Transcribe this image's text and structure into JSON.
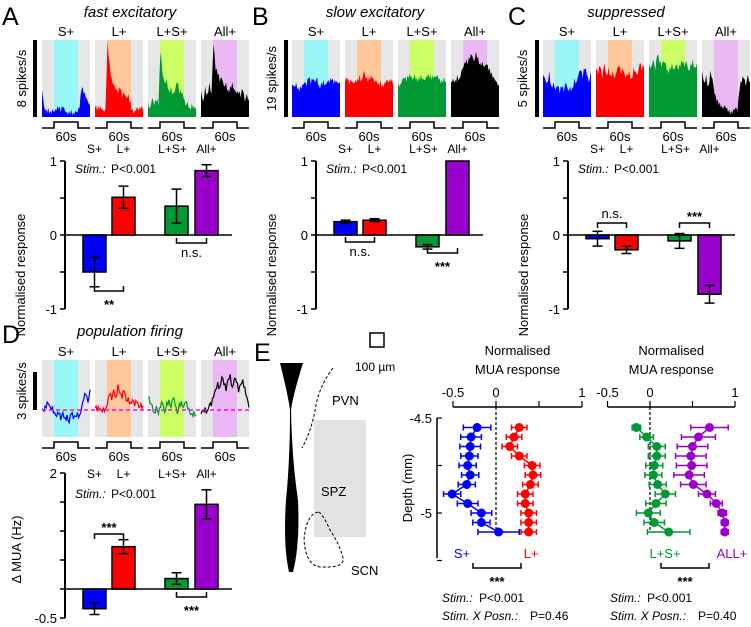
{
  "colors": {
    "S+": "#0000ff",
    "L+": "#ff0000",
    "L+S+": "#009933",
    "All+": "#000000",
    "All+bar": "#9900cc",
    "shade_S+": "#99f7f7",
    "shade_L+": "#ffc89c",
    "shade_L+S+": "#ccff66",
    "shade_All+": "#ebb8f5",
    "background": "#e6e6e6",
    "baseline": "#ff00ff"
  },
  "chart_data": [
    {
      "panel": "A",
      "type": "area",
      "title": "fast excitatory",
      "scale_label": "8 spikes/s",
      "duration_label": "60s",
      "traces": [
        {
          "name": "S+",
          "values": [
            0.35,
            0.14,
            0.1,
            0.12,
            0.08,
            0.1,
            0.07,
            0.09,
            0.1,
            0.06,
            0.12,
            0.08,
            0.06,
            0.08,
            0.1,
            0.06,
            0.08,
            0.06,
            0.12,
            0.36,
            0.3,
            0.25,
            0.2,
            0.16
          ]
        },
        {
          "name": "L+",
          "values": [
            0.12,
            0.08,
            0.1,
            0.1,
            0.08,
            0.1,
            1.0,
            0.7,
            0.5,
            0.42,
            0.35,
            0.3,
            0.36,
            0.25,
            0.3,
            0.25,
            0.3,
            0.2,
            0.1,
            0.08,
            0.12,
            0.08,
            0.1,
            0.08
          ]
        },
        {
          "name": "L+S+",
          "values": [
            0.2,
            0.12,
            0.25,
            0.15,
            0.2,
            0.15,
            0.85,
            0.55,
            0.45,
            0.5,
            0.35,
            0.4,
            0.3,
            0.35,
            0.45,
            0.3,
            0.3,
            0.25,
            0.15,
            0.2,
            0.12,
            0.18,
            0.15,
            0.12
          ]
        },
        {
          "name": "All+",
          "values": [
            0.35,
            0.2,
            0.4,
            0.3,
            0.45,
            0.3,
            0.95,
            0.6,
            0.55,
            0.45,
            0.5,
            0.4,
            0.45,
            0.35,
            0.4,
            0.45,
            0.35,
            0.3,
            0.3,
            0.25,
            0.35,
            0.2,
            0.3,
            0.22
          ]
        }
      ]
    },
    {
      "panel": "A",
      "type": "bar",
      "ylabel": "Normalised response",
      "ylim": [
        -1,
        1
      ],
      "yticks": [
        1,
        0.5,
        0,
        -0.5,
        -1
      ],
      "ytick_labels": [
        "1",
        "",
        "0",
        "",
        "-1"
      ],
      "categories": [
        "S+",
        "L+",
        "L+S+",
        "All+"
      ],
      "values": [
        -0.5,
        0.51,
        0.39,
        0.87
      ],
      "errors": [
        0.2,
        0.15,
        0.23,
        0.08
      ],
      "stat_label": "Stim.:",
      "stat_value": "P<0.001",
      "significance": [
        {
          "pair": [
            0,
            1
          ],
          "label": "**",
          "side": "below"
        },
        {
          "pair": [
            2,
            3
          ],
          "label": "n.s.",
          "side": "below"
        }
      ]
    },
    {
      "panel": "B",
      "type": "area",
      "title": "slow excitatory",
      "scale_label": "19 spikes/s",
      "duration_label": "60s",
      "traces": [
        {
          "name": "S+",
          "values": [
            0.42,
            0.4,
            0.45,
            0.38,
            0.4,
            0.42,
            0.45,
            0.4,
            0.5,
            0.42,
            0.48,
            0.45,
            0.52,
            0.4,
            0.45,
            0.48,
            0.42,
            0.46,
            0.44,
            0.47,
            0.42,
            0.45,
            0.44,
            0.46
          ]
        },
        {
          "name": "L+",
          "values": [
            0.45,
            0.48,
            0.42,
            0.46,
            0.44,
            0.48,
            0.5,
            0.55,
            0.48,
            0.6,
            0.5,
            0.45,
            0.48,
            0.5,
            0.45,
            0.47,
            0.44,
            0.48,
            0.42,
            0.45,
            0.48,
            0.44,
            0.46,
            0.42
          ]
        },
        {
          "name": "L+S+",
          "values": [
            0.45,
            0.42,
            0.48,
            0.5,
            0.46,
            0.5,
            0.52,
            0.48,
            0.55,
            0.5,
            0.52,
            0.55,
            0.5,
            0.48,
            0.52,
            0.5,
            0.48,
            0.5,
            0.52,
            0.55,
            0.5,
            0.48,
            0.52,
            0.46
          ]
        },
        {
          "name": "All+",
          "values": [
            0.45,
            0.5,
            0.48,
            0.55,
            0.5,
            0.6,
            0.65,
            0.7,
            0.68,
            0.75,
            0.8,
            0.72,
            0.85,
            0.78,
            0.7,
            0.72,
            0.65,
            0.68,
            0.6,
            0.55,
            0.5,
            0.48,
            0.45,
            0.42
          ]
        }
      ]
    },
    {
      "panel": "B",
      "type": "bar",
      "ylabel": "Normalised response",
      "ylim": [
        -1,
        1
      ],
      "yticks": [
        1,
        0.5,
        0,
        -0.5,
        -1
      ],
      "ytick_labels": [
        "1",
        "",
        "0",
        "",
        "-1"
      ],
      "categories": [
        "S+",
        "L+",
        "L+S+",
        "All+"
      ],
      "values": [
        0.18,
        0.2,
        -0.16,
        1.0
      ],
      "errors": [
        0.02,
        0.02,
        0.03,
        0
      ],
      "stat_label": "Stim.:",
      "stat_value": "P<0.001",
      "significance": [
        {
          "pair": [
            0,
            1
          ],
          "label": "n.s.",
          "side": "below"
        },
        {
          "pair": [
            2,
            3
          ],
          "label": "***",
          "side": "below"
        }
      ]
    },
    {
      "panel": "C",
      "type": "area",
      "title": "suppressed",
      "scale_label": "5 spikes/s",
      "duration_label": "60s",
      "traces": [
        {
          "name": "S+",
          "values": [
            0.55,
            0.5,
            0.45,
            0.6,
            0.4,
            0.45,
            0.35,
            0.4,
            0.3,
            0.38,
            0.32,
            0.45,
            0.35,
            0.4,
            0.38,
            0.5,
            0.45,
            0.55,
            0.6,
            0.5,
            0.62,
            0.55,
            0.45,
            0.6
          ]
        },
        {
          "name": "L+",
          "values": [
            0.6,
            0.55,
            0.65,
            0.5,
            0.7,
            0.55,
            0.65,
            0.55,
            0.6,
            0.5,
            0.6,
            0.65,
            0.55,
            0.6,
            0.5,
            0.55,
            0.6,
            0.5,
            0.65,
            0.6,
            0.55,
            0.7,
            0.6,
            0.65
          ]
        },
        {
          "name": "L+S+",
          "values": [
            0.7,
            0.65,
            0.75,
            0.6,
            0.8,
            0.7,
            0.65,
            0.72,
            0.7,
            0.6,
            0.65,
            0.7,
            0.62,
            0.68,
            0.6,
            0.65,
            0.7,
            0.65,
            0.72,
            0.6,
            0.7,
            0.75,
            0.65,
            0.7
          ]
        },
        {
          "name": "All+",
          "values": [
            0.6,
            0.45,
            0.55,
            0.4,
            0.6,
            0.5,
            0.3,
            0.2,
            0.15,
            0.12,
            0.1,
            0.15,
            0.12,
            0.1,
            0.08,
            0.1,
            0.12,
            0.08,
            0.35,
            0.45,
            0.5,
            0.4,
            0.55,
            0.45
          ]
        }
      ]
    },
    {
      "panel": "C",
      "type": "bar",
      "ylabel": "Normalised response",
      "ylim": [
        -1,
        1
      ],
      "yticks": [
        1,
        0.5,
        0,
        -0.5,
        -1
      ],
      "ytick_labels": [
        "1",
        "",
        "0",
        "",
        "-1"
      ],
      "categories": [
        "S+",
        "L+",
        "L+S+",
        "All+"
      ],
      "values": [
        -0.05,
        -0.2,
        -0.08,
        -0.8
      ],
      "errors": [
        0.1,
        0.05,
        0.1,
        0.12
      ],
      "stat_label": "Stim.:",
      "stat_value": "P<0.001",
      "significance": [
        {
          "pair": [
            0,
            1
          ],
          "label": "n.s.",
          "side": "above"
        },
        {
          "pair": [
            2,
            3
          ],
          "label": "***",
          "side": "above"
        }
      ]
    },
    {
      "panel": "D",
      "type": "line",
      "title": "population firing",
      "scale_label": "3 spikes/s",
      "duration_label": "60s",
      "units": "delta spikes/s from baseline",
      "traces": [
        {
          "name": "S+",
          "values": [
            0.1,
            -0.1,
            0.2,
            0.5,
            0.2,
            0.3,
            -0.2,
            -0.5,
            -0.3,
            -0.8,
            -0.2,
            -0.6,
            -0.4,
            -1.0,
            -0.3,
            -0.7,
            -0.5,
            -0.2,
            -0.4,
            0.2,
            0.8,
            1.2,
            0.6,
            1.6
          ]
        },
        {
          "name": "L+",
          "values": [
            0.2,
            -0.1,
            0.1,
            0,
            0.2,
            0.1,
            0.5,
            1.2,
            0.8,
            1.6,
            1.0,
            2.0,
            1.3,
            0.9,
            1.5,
            0.7,
            1.0,
            0.6,
            0.8,
            0.3,
            0.6,
            0.2,
            0.5,
            0.3
          ]
        },
        {
          "name": "L+S+",
          "values": [
            1.0,
            0.5,
            0.4,
            -0.2,
            0.3,
            -0.3,
            0.2,
            0.5,
            -0.2,
            0.6,
            0.8,
            0.2,
            0.9,
            0.4,
            -0.3,
            0.5,
            0.7,
            0.2,
            0.6,
            0.1,
            -0.2,
            -0.3,
            -0.1,
            -0.4
          ]
        },
        {
          "name": "All+",
          "values": [
            -0.3,
            0,
            0.2,
            -0.1,
            0.4,
            0.3,
            1.0,
            1.6,
            2.2,
            1.8,
            2.6,
            2.0,
            1.5,
            2.4,
            2.8,
            1.8,
            2.5,
            2.2,
            1.4,
            2.0,
            2.4,
            1.8,
            1.0,
            0.2
          ]
        }
      ]
    },
    {
      "panel": "D",
      "type": "bar",
      "ylabel": "Δ MUA (Hz)",
      "ylim": [
        -0.5,
        2
      ],
      "yticks": [
        2,
        1.5,
        1,
        0.5,
        0,
        -0.5
      ],
      "ytick_labels": [
        "2",
        "",
        "",
        "",
        "",
        "-0.5"
      ],
      "categories": [
        "S+",
        "L+",
        "L+S+",
        "All+"
      ],
      "values": [
        -0.34,
        0.73,
        0.18,
        1.46
      ],
      "errors": [
        0.1,
        0.12,
        0.1,
        0.25
      ],
      "stat_label": "Stim.:",
      "stat_value": "P<0.001",
      "significance": [
        {
          "pair": [
            0,
            1
          ],
          "label": "***",
          "side": "above"
        },
        {
          "pair": [
            2,
            3
          ],
          "label": "***",
          "side": "below"
        }
      ]
    },
    {
      "panel": "E",
      "type": "scatter",
      "title_line1": "Normalised",
      "title_line2": "MUA response",
      "ylabel": "Depth (mm)",
      "xlim": [
        -0.5,
        1
      ],
      "ylim": [
        -5.2,
        -4.5
      ],
      "xticks": [
        -0.5,
        0,
        0.5,
        1
      ],
      "xtick_labels": [
        "-0.5",
        "0",
        "",
        "1"
      ],
      "yticks": [
        -4.5,
        -4.75,
        -5,
        -5.25
      ],
      "ytick_labels": [
        "-4.5",
        "",
        "-5",
        ""
      ],
      "depths": [
        -4.55,
        -4.6,
        -4.65,
        -4.7,
        -4.75,
        -4.8,
        -4.85,
        -4.9,
        -4.95,
        -5.0,
        -5.05,
        -5.1
      ],
      "series": [
        {
          "name": "S+",
          "values": [
            -0.22,
            -0.29,
            -0.3,
            -0.31,
            -0.33,
            -0.3,
            -0.34,
            -0.51,
            -0.33,
            -0.17,
            -0.17,
            0.03
          ],
          "errors": [
            0.16,
            0.12,
            0.12,
            0.1,
            0.1,
            0.1,
            0.1,
            0.1,
            0.12,
            0.12,
            0.1,
            0.24
          ]
        },
        {
          "name": "L+",
          "values": [
            0.27,
            0.21,
            0.16,
            0.27,
            0.42,
            0.43,
            0.4,
            0.34,
            0.34,
            0.38,
            0.38,
            0.38
          ],
          "errors": [
            0.09,
            0.09,
            0.09,
            0.09,
            0.09,
            0.09,
            0.09,
            0.09,
            0.09,
            0.09,
            0.09,
            0.09
          ]
        }
      ],
      "stat_line1_label": "Stim.:",
      "stat_line1_value": "P<0.001",
      "stat_line2_label": "Stim. X Posn.:",
      "stat_line2_value": "P=0.46",
      "significance": "***"
    },
    {
      "panel": "E",
      "type": "scatter",
      "title_line1": "Normalised",
      "title_line2": "MUA response",
      "xlim": [
        -0.5,
        1
      ],
      "xticks": [
        -0.5,
        0,
        0.5,
        1
      ],
      "xtick_labels": [
        "-0.5",
        "0",
        "",
        "1"
      ],
      "depths": [
        -4.55,
        -4.6,
        -4.65,
        -4.7,
        -4.75,
        -4.8,
        -4.85,
        -4.9,
        -4.95,
        -5.0,
        -5.05,
        -5.1
      ],
      "series": [
        {
          "name": "L+S+",
          "values": [
            -0.16,
            -0.04,
            0.08,
            0.08,
            0.05,
            0.04,
            0.09,
            0.18,
            0.07,
            -0.02,
            0.05,
            0.22
          ],
          "errors": [
            0.05,
            0.08,
            0.1,
            0.1,
            0.1,
            0.1,
            0.1,
            0.12,
            0.12,
            0.14,
            0.12,
            0.25
          ]
        },
        {
          "name": "ALL+",
          "values": [
            0.7,
            0.57,
            0.5,
            0.48,
            0.49,
            0.46,
            0.51,
            0.67,
            0.78,
            0.85,
            0.88,
            0.88
          ],
          "errors": [
            0.22,
            0.2,
            0.18,
            0.18,
            0.18,
            0.18,
            0.15,
            0.1,
            0.07,
            0.05,
            0.04,
            0.04
          ]
        }
      ],
      "stat_line1_label": "Stim.:",
      "stat_line1_value": "P<0.001",
      "stat_line2_label": "Stim. X Posn.:",
      "stat_line2_value": "P=0.40",
      "significance": "***"
    }
  ],
  "panel_letters": [
    "A",
    "B",
    "C",
    "D",
    "E"
  ],
  "schematic": {
    "scale_label": "100 µm",
    "regions": [
      "PVN",
      "SPZ",
      "SCN"
    ]
  }
}
